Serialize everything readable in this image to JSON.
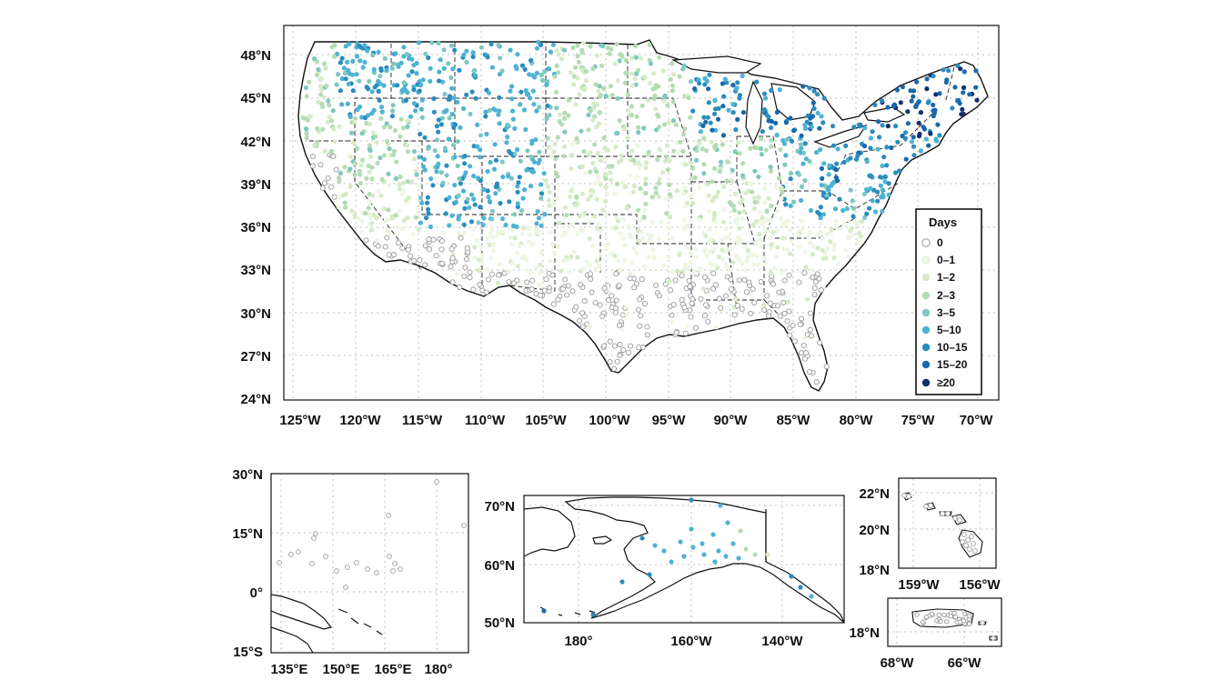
{
  "legend": {
    "title": "Days",
    "items": [
      {
        "label": "0",
        "color": "#ffffff",
        "stroke": "#9a9a9a"
      },
      {
        "label": "0–1",
        "color": "#eef6e4",
        "stroke": "#eef6e4"
      },
      {
        "label": "1–2",
        "color": "#d6ebc8",
        "stroke": "#d6ebc8"
      },
      {
        "label": "2–3",
        "color": "#b4dcb4",
        "stroke": "#b4dcb4"
      },
      {
        "label": "3–5",
        "color": "#7ec8c0",
        "stroke": "#7ec8c0"
      },
      {
        "label": "5–10",
        "color": "#4eb3d3",
        "stroke": "#4eb3d3"
      },
      {
        "label": "10–15",
        "color": "#2b8cbe",
        "stroke": "#2b8cbe"
      },
      {
        "label": "15–20",
        "color": "#1a68ac",
        "stroke": "#1a68ac"
      },
      {
        "label": "≥20",
        "color": "#12306e",
        "stroke": "#12306e"
      }
    ]
  },
  "maps": {
    "conus": {
      "lat_labels": [
        "48°N",
        "45°N",
        "42°N",
        "39°N",
        "36°N",
        "33°N",
        "30°N",
        "27°N",
        "24°N"
      ],
      "lon_labels": [
        "125°W",
        "120°W",
        "115°W",
        "110°W",
        "105°W",
        "100°W",
        "95°W",
        "90°W",
        "85°W",
        "80°W",
        "75°W",
        "70°W"
      ]
    },
    "pacific": {
      "lat_labels": [
        "30°N",
        "15°N",
        "0°",
        "15°S"
      ],
      "lon_labels": [
        "135°E",
        "150°E",
        "165°E",
        "180°"
      ]
    },
    "alaska": {
      "lat_labels": [
        "70°N",
        "60°N",
        "50°N"
      ],
      "lon_labels": [
        "180°",
        "160°W",
        "140°W"
      ]
    },
    "hawaii": {
      "lat_labels": [
        "22°N",
        "20°N",
        "18°N"
      ],
      "lon_labels": [
        "159°W",
        "156°W"
      ]
    },
    "puerto_rico": {
      "lat_labels": [
        "18°N"
      ],
      "lon_labels": [
        "68°W",
        "66°W"
      ]
    }
  }
}
